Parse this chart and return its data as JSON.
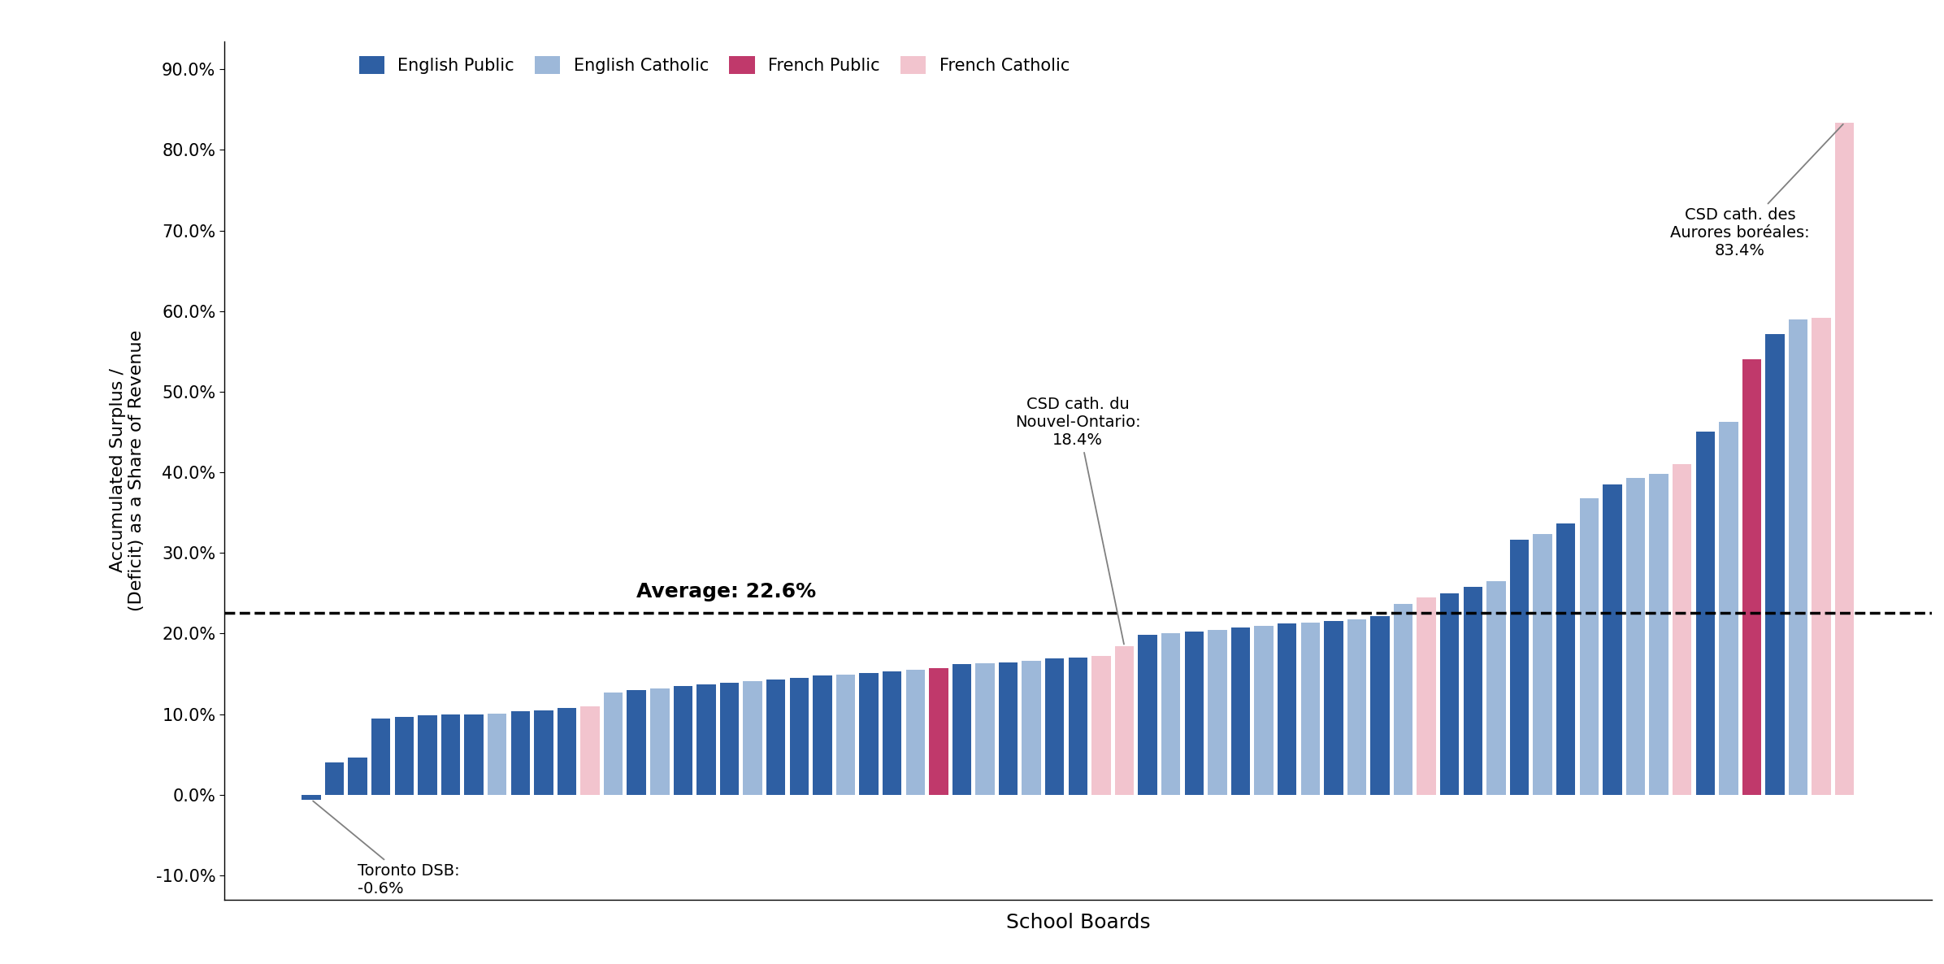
{
  "ylabel": "Accumulated Surplus /\n(Deficit) as a Share of Revenue",
  "xlabel": "School Boards",
  "average": 0.226,
  "average_label": "Average: 22.6%",
  "ylim": [
    -0.13,
    0.935
  ],
  "yticks": [
    -0.1,
    0.0,
    0.1,
    0.2,
    0.3,
    0.4,
    0.5,
    0.6,
    0.7,
    0.8,
    0.9
  ],
  "ytick_labels": [
    "-10.0%",
    "0.0%",
    "10.0%",
    "20.0%",
    "30.0%",
    "40.0%",
    "50.0%",
    "60.0%",
    "70.0%",
    "80.0%",
    "90.0%"
  ],
  "colors": {
    "EP": "#2E5FA3",
    "EC": "#9DB8D9",
    "FP": "#C0396B",
    "FC": "#F2C4CE"
  },
  "legend_labels": [
    "English Public",
    "English Catholic",
    "French Public",
    "French Catholic"
  ],
  "legend_color_keys": [
    "EP",
    "EC",
    "FP",
    "FC"
  ],
  "bars": [
    {
      "value": -0.006,
      "type": "EP"
    },
    {
      "value": 0.04,
      "type": "EP"
    },
    {
      "value": 0.046,
      "type": "EP"
    },
    {
      "value": 0.095,
      "type": "EP"
    },
    {
      "value": 0.097,
      "type": "EP"
    },
    {
      "value": 0.099,
      "type": "EP"
    },
    {
      "value": 0.1,
      "type": "EP"
    },
    {
      "value": 0.1,
      "type": "EP"
    },
    {
      "value": 0.101,
      "type": "EC"
    },
    {
      "value": 0.104,
      "type": "EP"
    },
    {
      "value": 0.105,
      "type": "EP"
    },
    {
      "value": 0.108,
      "type": "EP"
    },
    {
      "value": 0.11,
      "type": "FC"
    },
    {
      "value": 0.127,
      "type": "EC"
    },
    {
      "value": 0.13,
      "type": "EP"
    },
    {
      "value": 0.132,
      "type": "EC"
    },
    {
      "value": 0.135,
      "type": "EP"
    },
    {
      "value": 0.137,
      "type": "EP"
    },
    {
      "value": 0.139,
      "type": "EP"
    },
    {
      "value": 0.141,
      "type": "EC"
    },
    {
      "value": 0.143,
      "type": "EP"
    },
    {
      "value": 0.145,
      "type": "EP"
    },
    {
      "value": 0.148,
      "type": "EP"
    },
    {
      "value": 0.149,
      "type": "EC"
    },
    {
      "value": 0.151,
      "type": "EP"
    },
    {
      "value": 0.153,
      "type": "EP"
    },
    {
      "value": 0.155,
      "type": "EC"
    },
    {
      "value": 0.157,
      "type": "FP"
    },
    {
      "value": 0.162,
      "type": "EP"
    },
    {
      "value": 0.163,
      "type": "EC"
    },
    {
      "value": 0.164,
      "type": "EP"
    },
    {
      "value": 0.166,
      "type": "EC"
    },
    {
      "value": 0.169,
      "type": "EP"
    },
    {
      "value": 0.17,
      "type": "EP"
    },
    {
      "value": 0.172,
      "type": "FC"
    },
    {
      "value": 0.184,
      "type": "FC"
    },
    {
      "value": 0.198,
      "type": "EP"
    },
    {
      "value": 0.2,
      "type": "EC"
    },
    {
      "value": 0.202,
      "type": "EP"
    },
    {
      "value": 0.204,
      "type": "EC"
    },
    {
      "value": 0.207,
      "type": "EP"
    },
    {
      "value": 0.209,
      "type": "EC"
    },
    {
      "value": 0.212,
      "type": "EP"
    },
    {
      "value": 0.214,
      "type": "EC"
    },
    {
      "value": 0.216,
      "type": "EP"
    },
    {
      "value": 0.218,
      "type": "EC"
    },
    {
      "value": 0.222,
      "type": "EP"
    },
    {
      "value": 0.237,
      "type": "EC"
    },
    {
      "value": 0.245,
      "type": "FC"
    },
    {
      "value": 0.25,
      "type": "EP"
    },
    {
      "value": 0.258,
      "type": "EP"
    },
    {
      "value": 0.265,
      "type": "EC"
    },
    {
      "value": 0.316,
      "type": "EP"
    },
    {
      "value": 0.323,
      "type": "EC"
    },
    {
      "value": 0.337,
      "type": "EP"
    },
    {
      "value": 0.368,
      "type": "EC"
    },
    {
      "value": 0.385,
      "type": "EP"
    },
    {
      "value": 0.393,
      "type": "EC"
    },
    {
      "value": 0.398,
      "type": "EC"
    },
    {
      "value": 0.41,
      "type": "FC"
    },
    {
      "value": 0.45,
      "type": "EP"
    },
    {
      "value": 0.463,
      "type": "EC"
    },
    {
      "value": 0.54,
      "type": "FP"
    },
    {
      "value": 0.572,
      "type": "EP"
    },
    {
      "value": 0.59,
      "type": "EC"
    },
    {
      "value": 0.592,
      "type": "FC"
    },
    {
      "value": 0.834,
      "type": "FC"
    }
  ],
  "toronto_bar_index": 0,
  "toronto_value": -0.006,
  "toronto_label": "Toronto DSB:\n-0.6%",
  "nouvel_bar_index": 35,
  "nouvel_value": 0.184,
  "nouvel_label": "CSD cath. du\nNouvel-Ontario:\n18.4%",
  "aurores_bar_index": 66,
  "aurores_value": 0.834,
  "aurores_label": "CSD cath. des\nAurores boréales:\n83.4%",
  "background_color": "#FFFFFF"
}
